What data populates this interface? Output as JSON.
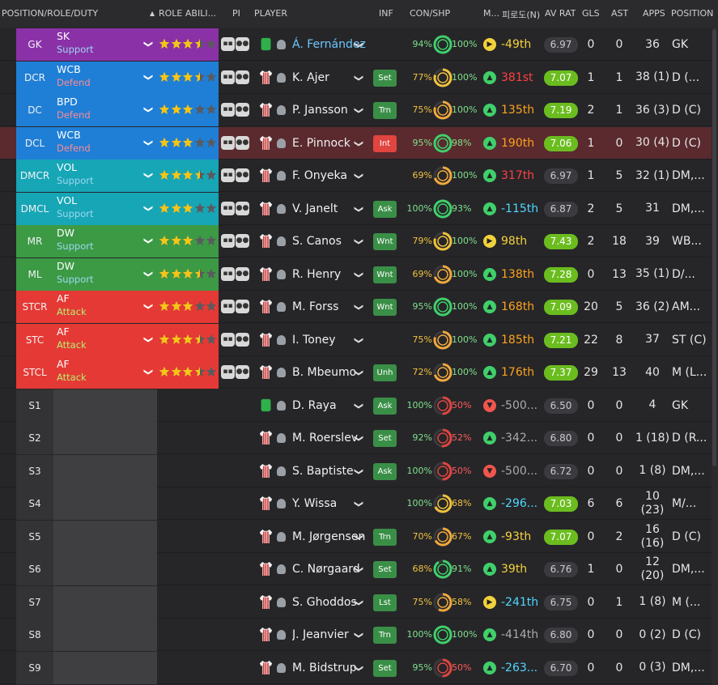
{
  "headers": {
    "position": "POSITION/ROLE/DUTY",
    "sort": "▲",
    "role_ability": "ROLE ABILI...",
    "pi": "PI",
    "player": "PLAYER",
    "inf": "INF",
    "con_shp": "CON/SHP",
    "morale": "M...",
    "progress": "피로도(N)",
    "av_rat": "AV RAT",
    "gls": "GLS",
    "ast": "AST",
    "apps": "APPS",
    "pos": "POSITION"
  },
  "colors": {
    "purple": "#8a31a8",
    "blue": "#1f7fd6",
    "teal": "#16a6b6",
    "green": "#3c9a45",
    "red": "#e53935",
    "subbg": "#3f3f42",
    "dutySupport": "#9ed7f0",
    "dutyDefend": "#ff8a95",
    "dutyAttack": "#b5f06e"
  },
  "rows": [
    {
      "pos": "GK",
      "role": "SK",
      "duty": "Support",
      "band": "purple",
      "stars": 3.5,
      "shirt": "gk",
      "name": "Á. Fernández",
      "nameColor": "#6cc9ff",
      "inf": "",
      "con": "94%",
      "conC": "#7fe08a",
      "shp": "100%",
      "shpC": "#7fe08a",
      "ring": 1.0,
      "ringC": "#3fd06a",
      "mor": "yellow",
      "prog": "-49th",
      "progC": "#f5d23a",
      "rat": "6.97",
      "ratBg": "#3a3a3f",
      "ratC": "#ccc",
      "gls": "0",
      "ast": "0",
      "apps": "36",
      "apos": "GK"
    },
    {
      "pos": "DCR",
      "role": "WCB",
      "duty": "Defend",
      "band": "blue",
      "stars": 3.5,
      "shirt": "out",
      "name": "K. Ajer",
      "inf": "Set",
      "infBg": "#3a8f47",
      "con": "77%",
      "conC": "#f0c23c",
      "shp": "100%",
      "shpC": "#7fe08a",
      "ring": 0.8,
      "ringC": "#f0c23c",
      "mor": "green",
      "prog": "381st",
      "progC": "#ff4040",
      "rat": "7.07",
      "ratBg": "#6bbd1f",
      "ratC": "#fff",
      "gls": "1",
      "ast": "1",
      "apps": "38 (1)",
      "apos": "D (..."
    },
    {
      "pos": "DC",
      "role": "BPD",
      "duty": "Defend",
      "band": "blue",
      "stars": 3,
      "shirt": "out",
      "name": "P. Jansson",
      "inf": "Trn",
      "infBg": "#3a8f47",
      "con": "75%",
      "conC": "#f0c23c",
      "shp": "100%",
      "shpC": "#7fe08a",
      "ring": 0.8,
      "ringC": "#f0a83c",
      "mor": "green",
      "prog": "135th",
      "progC": "#ffa21a",
      "rat": "7.19",
      "ratBg": "#6bbd1f",
      "ratC": "#fff",
      "gls": "2",
      "ast": "1",
      "apps": "36 (3)",
      "apos": "D (C)"
    },
    {
      "pos": "DCL",
      "role": "WCB",
      "duty": "Defend",
      "band": "blue",
      "stars": 3,
      "shirt": "out",
      "name": "E. Pinnock",
      "inf": "Int",
      "infBg": "#e0453f",
      "con": "95%",
      "conC": "#7fe08a",
      "shp": "98%",
      "shpC": "#7fe08a",
      "ring": 1.0,
      "ringC": "#3fd06a",
      "mor": "green",
      "prog": "190th",
      "progC": "#ffa21a",
      "rat": "7.06",
      "ratBg": "#6bbd1f",
      "ratC": "#fff",
      "gls": "1",
      "ast": "0",
      "apps": "30 (4)",
      "apos": "D (C)",
      "hl": true
    },
    {
      "pos": "DMCR",
      "role": "VOL",
      "duty": "Support",
      "band": "teal",
      "stars": 3.5,
      "shirt": "out",
      "name": "F. Onyeka",
      "inf": "",
      "con": "69%",
      "conC": "#f0c23c",
      "shp": "100%",
      "shpC": "#7fe08a",
      "ring": 0.7,
      "ringC": "#f0a83c",
      "mor": "green",
      "prog": "317th",
      "progC": "#ff4040",
      "rat": "6.97",
      "ratBg": "#3a3a3f",
      "ratC": "#ccc",
      "gls": "1",
      "ast": "5",
      "apps": "32 (1)",
      "apos": "DM,..."
    },
    {
      "pos": "DMCL",
      "role": "VOL",
      "duty": "Support",
      "band": "teal",
      "stars": 3,
      "shirt": "out",
      "name": "V. Janelt",
      "inf": "Ask",
      "infBg": "#3a8f47",
      "con": "100%",
      "conC": "#7fe08a",
      "shp": "93%",
      "shpC": "#7fe08a",
      "ring": 1.0,
      "ringC": "#3fd06a",
      "mor": "green",
      "prog": "-115th",
      "progC": "#4fd7ff",
      "rat": "6.87",
      "ratBg": "#3a3a3f",
      "ratC": "#ccc",
      "gls": "2",
      "ast": "5",
      "apps": "31",
      "apos": "DM,..."
    },
    {
      "pos": "MR",
      "role": "DW",
      "duty": "Support",
      "band": "green",
      "stars": 3,
      "shirt": "out",
      "name": "S. Canos",
      "inf": "Wnt",
      "infBg": "#3a8f47",
      "con": "79%",
      "conC": "#f0c23c",
      "shp": "100%",
      "shpC": "#7fe08a",
      "ring": 0.8,
      "ringC": "#f0c23c",
      "mor": "yellow",
      "prog": "98th",
      "progC": "#f5d23a",
      "rat": "7.43",
      "ratBg": "#6bbd1f",
      "ratC": "#fff",
      "gls": "2",
      "ast": "18",
      "apps": "39",
      "apos": "WB..."
    },
    {
      "pos": "ML",
      "role": "DW",
      "duty": "Support",
      "band": "green",
      "stars": 3.5,
      "shirt": "out",
      "name": "R. Henry",
      "inf": "Wnt",
      "infBg": "#3a8f47",
      "con": "69%",
      "conC": "#f0c23c",
      "shp": "100%",
      "shpC": "#7fe08a",
      "ring": 0.7,
      "ringC": "#f0a83c",
      "mor": "green",
      "prog": "138th",
      "progC": "#ffa21a",
      "rat": "7.28",
      "ratBg": "#6bbd1f",
      "ratC": "#fff",
      "gls": "0",
      "ast": "13",
      "apps": "35 (1)",
      "apos": "D/..."
    },
    {
      "pos": "STCR",
      "role": "AF",
      "duty": "Attack",
      "band": "red",
      "stars": 3,
      "shirt": "out",
      "name": "M. Forss",
      "inf": "Wnt",
      "infBg": "#3a8f47",
      "con": "95%",
      "conC": "#7fe08a",
      "shp": "100%",
      "shpC": "#7fe08a",
      "ring": 1.0,
      "ringC": "#3fd06a",
      "mor": "green",
      "prog": "168th",
      "progC": "#ffa21a",
      "rat": "7.09",
      "ratBg": "#6bbd1f",
      "ratC": "#fff",
      "gls": "20",
      "ast": "5",
      "apps": "36 (2)",
      "apos": "AM..."
    },
    {
      "pos": "STC",
      "role": "AF",
      "duty": "Attack",
      "band": "red",
      "stars": 3.5,
      "shirt": "out",
      "name": "I. Toney",
      "inf": "",
      "con": "75%",
      "conC": "#f0c23c",
      "shp": "100%",
      "shpC": "#7fe08a",
      "ring": 0.8,
      "ringC": "#f0a83c",
      "mor": "green",
      "prog": "185th",
      "progC": "#ffa21a",
      "rat": "7.21",
      "ratBg": "#6bbd1f",
      "ratC": "#fff",
      "gls": "22",
      "ast": "8",
      "apps": "37",
      "apos": "ST (C)"
    },
    {
      "pos": "STCL",
      "role": "AF",
      "duty": "Attack",
      "band": "red",
      "stars": 3.5,
      "shirt": "out",
      "name": "B. Mbeumo",
      "inf": "Unh",
      "infBg": "#3a8f47",
      "con": "72%",
      "conC": "#f0c23c",
      "shp": "100%",
      "shpC": "#7fe08a",
      "ring": 0.7,
      "ringC": "#f0a83c",
      "mor": "green",
      "prog": "176th",
      "progC": "#ffa21a",
      "rat": "7.37",
      "ratBg": "#6bbd1f",
      "ratC": "#fff",
      "gls": "29",
      "ast": "13",
      "apps": "40",
      "apos": "M (L..."
    },
    {
      "pos": "S1",
      "band": "sub",
      "shirt": "gk",
      "name": "D. Raya",
      "inf": "Ask",
      "infBg": "#3a8f47",
      "con": "100%",
      "conC": "#7fe08a",
      "shp": "50%",
      "shpC": "#ff5a5a",
      "ring": 0.5,
      "ringC": "#e0453f",
      "mor": "red",
      "prog": "-500...",
      "progC": "#aaa",
      "rat": "6.50",
      "ratBg": "#3a3a3f",
      "ratC": "#ccc",
      "gls": "0",
      "ast": "0",
      "apps": "4",
      "apos": "GK"
    },
    {
      "pos": "S2",
      "band": "sub",
      "shirt": "out",
      "name": "M. Roerslev",
      "inf": "Set",
      "infBg": "#3a8f47",
      "con": "92%",
      "conC": "#7fe08a",
      "shp": "52%",
      "shpC": "#ff5a5a",
      "ring": 0.52,
      "ringC": "#e0453f",
      "mor": "green",
      "prog": "-342...",
      "progC": "#aaa",
      "rat": "6.80",
      "ratBg": "#3a3a3f",
      "ratC": "#ccc",
      "gls": "0",
      "ast": "0",
      "apps": "1 (18)",
      "apos": "D (R..."
    },
    {
      "pos": "S3",
      "band": "sub",
      "shirt": "out",
      "name": "S. Baptiste",
      "inf": "Ask",
      "infBg": "#3a8f47",
      "con": "100%",
      "conC": "#7fe08a",
      "shp": "50%",
      "shpC": "#ff5a5a",
      "ring": 0.5,
      "ringC": "#e0453f",
      "mor": "red",
      "prog": "-500...",
      "progC": "#aaa",
      "rat": "6.72",
      "ratBg": "#3a3a3f",
      "ratC": "#ccc",
      "gls": "0",
      "ast": "0",
      "apps": "1 (8)",
      "apos": "DM,..."
    },
    {
      "pos": "S4",
      "band": "sub",
      "shirt": "out",
      "name": "Y. Wissa",
      "inf": "",
      "con": "100%",
      "conC": "#7fe08a",
      "shp": "68%",
      "shpC": "#f0c23c",
      "ring": 0.68,
      "ringC": "#f0c23c",
      "mor": "green",
      "prog": "-296...",
      "progC": "#4fd7ff",
      "rat": "7.03",
      "ratBg": "#6bbd1f",
      "ratC": "#fff",
      "gls": "6",
      "ast": "6",
      "apps": "10 (23)",
      "apos": "M/..."
    },
    {
      "pos": "S5",
      "band": "sub",
      "shirt": "out",
      "name": "M. Jørgensen",
      "inf": "Trn",
      "infBg": "#3a8f47",
      "con": "70%",
      "conC": "#f0c23c",
      "shp": "67%",
      "shpC": "#f0c23c",
      "ring": 0.67,
      "ringC": "#f0a83c",
      "mor": "green",
      "prog": "-93th",
      "progC": "#f5d23a",
      "rat": "7.07",
      "ratBg": "#6bbd1f",
      "ratC": "#fff",
      "gls": "0",
      "ast": "2",
      "apps": "16 (16)",
      "apos": "D (C)"
    },
    {
      "pos": "S6",
      "band": "sub",
      "shirt": "out",
      "name": "C. Nørgaard",
      "inf": "Set",
      "infBg": "#3a8f47",
      "con": "68%",
      "conC": "#f0c23c",
      "shp": "91%",
      "shpC": "#7fe08a",
      "ring": 0.91,
      "ringC": "#3fd06a",
      "mor": "green",
      "prog": "39th",
      "progC": "#f5d23a",
      "rat": "6.76",
      "ratBg": "#3a3a3f",
      "ratC": "#ccc",
      "gls": "1",
      "ast": "0",
      "apps": "12 (20)",
      "apos": "DM,..."
    },
    {
      "pos": "S7",
      "band": "sub",
      "shirt": "out",
      "name": "S. Ghoddos",
      "inf": "Lst",
      "infBg": "#3a8f47",
      "con": "75%",
      "conC": "#f0c23c",
      "shp": "58%",
      "shpC": "#f0c23c",
      "ring": 0.58,
      "ringC": "#f0a83c",
      "mor": "yellow",
      "prog": "-241th",
      "progC": "#4fd7ff",
      "rat": "6.75",
      "ratBg": "#3a3a3f",
      "ratC": "#ccc",
      "gls": "0",
      "ast": "1",
      "apps": "1 (8)",
      "apos": "M (..."
    },
    {
      "pos": "S8",
      "band": "sub",
      "shirt": "out",
      "name": "J. Jeanvier",
      "inf": "Trn",
      "infBg": "#3a8f47",
      "con": "100%",
      "conC": "#7fe08a",
      "shp": "100%",
      "shpC": "#7fe08a",
      "ring": 1.0,
      "ringC": "#3fd06a",
      "mor": "green",
      "prog": "-414th",
      "progC": "#aaa",
      "rat": "6.80",
      "ratBg": "#3a3a3f",
      "ratC": "#ccc",
      "gls": "0",
      "ast": "0",
      "apps": "0 (2)",
      "apos": "D (C)"
    },
    {
      "pos": "S9",
      "band": "sub",
      "shirt": "out",
      "name": "M. Bidstrup",
      "inf": "Set",
      "infBg": "#3a8f47",
      "con": "95%",
      "conC": "#7fe08a",
      "shp": "50%",
      "shpC": "#ff5a5a",
      "ring": 0.5,
      "ringC": "#e0453f",
      "mor": "green",
      "prog": "-263...",
      "progC": "#4fd7ff",
      "rat": "6.70",
      "ratBg": "#3a3a3f",
      "ratC": "#ccc",
      "gls": "0",
      "ast": "0",
      "apps": "0 (3)",
      "apos": "DM,..."
    }
  ]
}
